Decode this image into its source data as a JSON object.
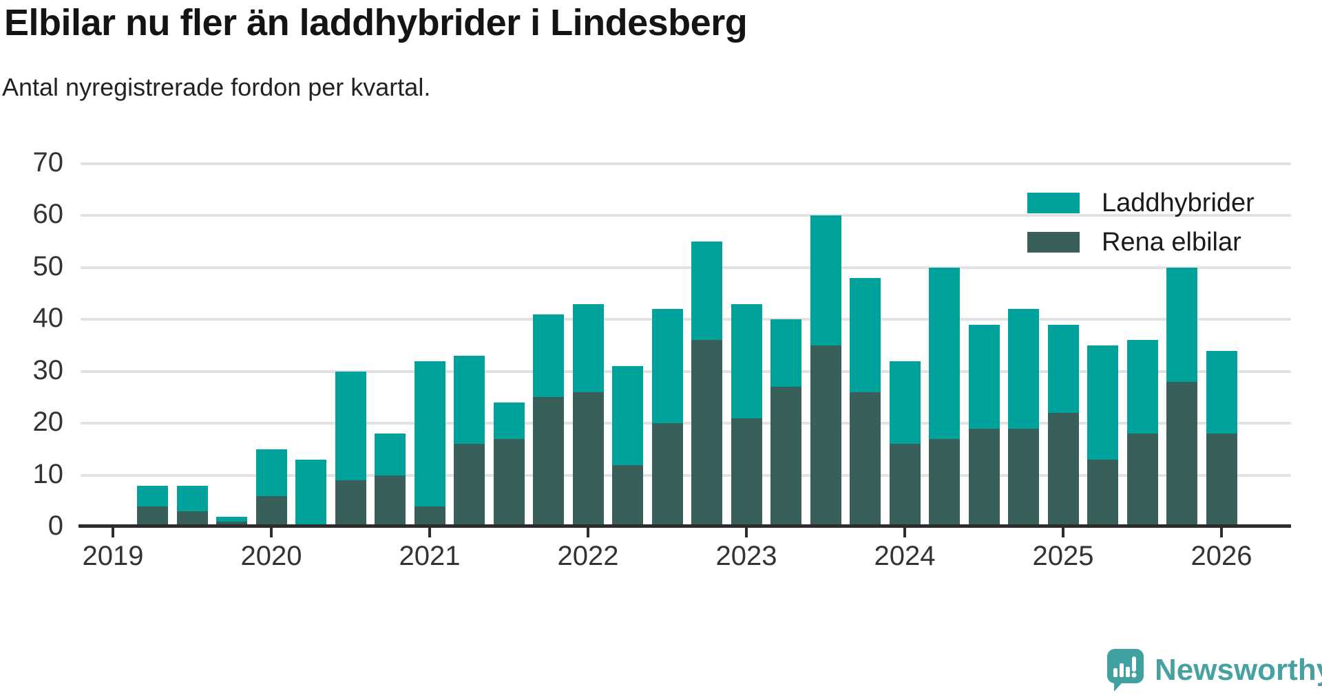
{
  "header": {
    "title": "Elbilar nu fler än laddhybrider i Lindesberg",
    "subtitle": "Antal nyregistrerade fordon per kvartal."
  },
  "legend": [
    {
      "label": "Laddhybrider",
      "color": "#00a39b"
    },
    {
      "label": "Rena elbilar",
      "color": "#385f59"
    }
  ],
  "footer": {
    "brand": "Newsworthy",
    "brand_color": "#47a1a0"
  },
  "colors": {
    "laddhybrider": "#00a39b",
    "rena_elbilar": "#385f59",
    "gridline": "#e2e2e2",
    "axis": "#2d2d2d",
    "tick_label": "#333333"
  },
  "chart_data": {
    "type": "bar",
    "stacked": true,
    "title": "Elbilar nu fler än laddhybrider i Lindesberg",
    "subtitle": "Antal nyregistrerade fordon per kvartal.",
    "xlabel": "",
    "ylabel": "",
    "ylim": [
      0,
      70
    ],
    "yticks": [
      0,
      10,
      20,
      30,
      40,
      50,
      60,
      70
    ],
    "grid": true,
    "legend_position": "top-right",
    "categories": [
      "2019 Q1",
      "2019 Q2",
      "2019 Q3",
      "2019 Q4",
      "2020 Q1",
      "2020 Q2",
      "2020 Q3",
      "2020 Q4",
      "2021 Q1",
      "2021 Q2",
      "2021 Q3",
      "2021 Q4",
      "2022 Q1",
      "2022 Q2",
      "2022 Q3",
      "2022 Q4",
      "2023 Q1",
      "2023 Q2",
      "2023 Q3",
      "2023 Q4",
      "2024 Q1",
      "2024 Q2",
      "2024 Q3",
      "2024 Q4",
      "2025 Q1",
      "2025 Q2",
      "2025 Q3",
      "2025 Q4",
      "2026 Q1"
    ],
    "series": [
      {
        "name": "Rena elbilar",
        "color": "#385f59",
        "values": [
          0,
          4,
          3,
          1,
          6,
          0,
          9,
          10,
          4,
          16,
          17,
          25,
          26,
          12,
          20,
          36,
          21,
          27,
          35,
          26,
          16,
          17,
          19,
          19,
          22,
          13,
          18,
          28,
          18
        ]
      },
      {
        "name": "Laddhybrider",
        "color": "#00a39b",
        "values": [
          0,
          4,
          5,
          1,
          9,
          13,
          21,
          8,
          28,
          17,
          7,
          16,
          17,
          19,
          22,
          19,
          22,
          13,
          25,
          22,
          16,
          33,
          20,
          23,
          17,
          22,
          18,
          22,
          16
        ]
      }
    ],
    "stacked_totals": [
      0,
      8,
      8,
      2,
      15,
      13,
      30,
      18,
      32,
      33,
      24,
      41,
      43,
      31,
      42,
      55,
      43,
      40,
      60,
      48,
      32,
      50,
      39,
      42,
      39,
      35,
      36,
      50,
      34
    ],
    "year_ticks": [
      {
        "label": "2019",
        "slot": 0
      },
      {
        "label": "2020",
        "slot": 4
      },
      {
        "label": "2021",
        "slot": 8
      },
      {
        "label": "2022",
        "slot": 12
      },
      {
        "label": "2023",
        "slot": 16
      },
      {
        "label": "2024",
        "slot": 20
      },
      {
        "label": "2025",
        "slot": 24
      },
      {
        "label": "2026",
        "slot": 28
      }
    ]
  }
}
